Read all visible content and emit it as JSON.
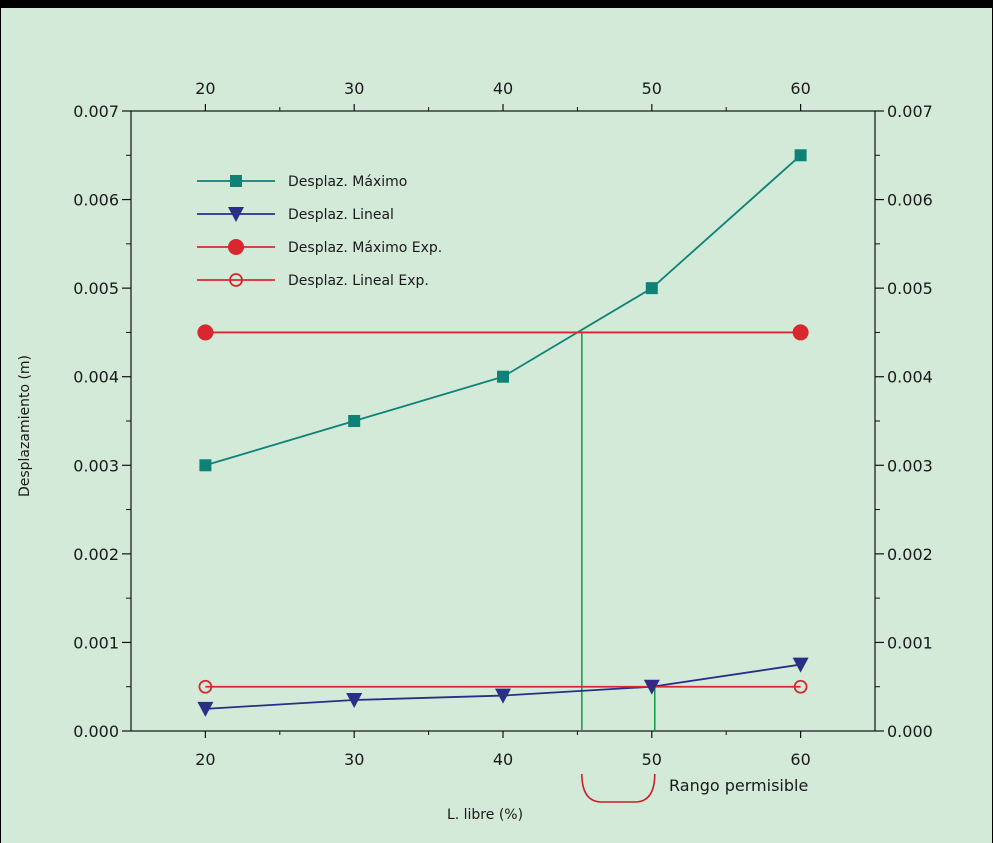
{
  "chart_data": {
    "type": "line",
    "xlabel": "L. libre (%)",
    "ylabel": "Desplazamiento (m)",
    "xlim": [
      15,
      65
    ],
    "ylim": [
      0,
      0.007
    ],
    "x_ticks": [
      "20",
      "30",
      "40",
      "50",
      "60"
    ],
    "y_ticks": [
      "0.000",
      "0.001",
      "0.002",
      "0.003",
      "0.004",
      "0.005",
      "0.006",
      "0.007"
    ],
    "grid": false,
    "legend_position": "top-left",
    "background_color": "#d3ead8",
    "series": [
      {
        "name": "Desplaz. Máximo",
        "color": "#0e8276",
        "marker": "square-filled",
        "x": [
          20,
          30,
          40,
          50,
          60
        ],
        "y": [
          0.003,
          0.0035,
          0.004,
          0.005,
          0.0065
        ]
      },
      {
        "name": "Desplaz. Lineal",
        "color": "#2a2e84",
        "marker": "triangle-down-filled",
        "x": [
          20,
          30,
          40,
          50,
          60
        ],
        "y": [
          0.00025,
          0.00035,
          0.0004,
          0.0005,
          0.00075
        ]
      },
      {
        "name": "Desplaz. Máximo Exp.",
        "color": "#d8272e",
        "marker": "circle-filled",
        "x": [
          20,
          60
        ],
        "y": [
          0.0045,
          0.0045
        ]
      },
      {
        "name": "Desplaz. Lineal Exp.",
        "color": "#d8272e",
        "marker": "circle-open",
        "x": [
          20,
          60
        ],
        "y": [
          0.0005,
          0.0005
        ]
      }
    ],
    "annotations": [
      {
        "type": "vertical-line",
        "color": "#119943",
        "x": 45.3,
        "y_from": 0,
        "y_to": 0.0045
      },
      {
        "type": "vertical-line",
        "color": "#119943",
        "x": 50.2,
        "y_from": 0,
        "y_to": 0.0005
      },
      {
        "type": "bracket",
        "color": "#c8212a",
        "x_from": 45.3,
        "x_to": 50.2,
        "text": "Rango permisible"
      }
    ]
  }
}
